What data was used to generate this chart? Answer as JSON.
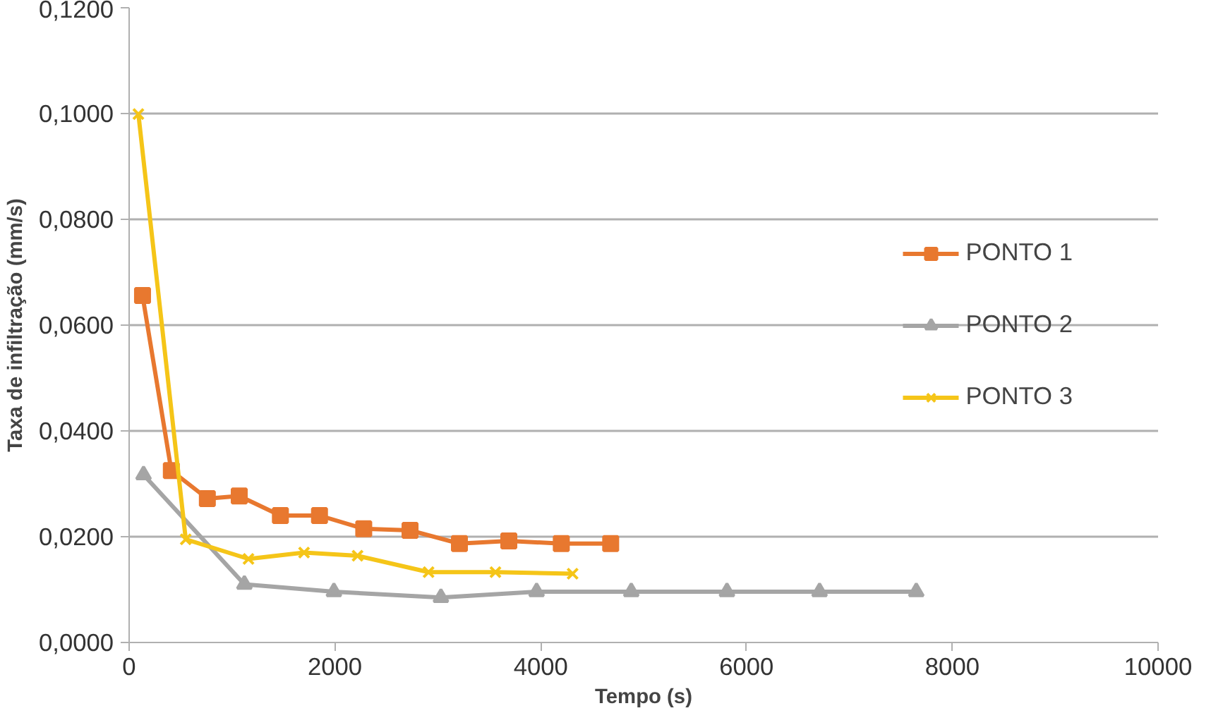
{
  "chart_data": {
    "type": "line",
    "xlabel": "Tempo (s)",
    "ylabel": "Taxa de infiltração (mm/s)",
    "xlim": [
      0,
      10000
    ],
    "xticks": [
      0,
      2000,
      4000,
      6000,
      8000,
      10000
    ],
    "ylim": [
      0,
      0.12
    ],
    "yticks": [
      {
        "value": 0,
        "label": "0,0000"
      },
      {
        "value": 0.02,
        "label": "0,0200"
      },
      {
        "value": 0.04,
        "label": "0,0400"
      },
      {
        "value": 0.06,
        "label": "0,0600"
      },
      {
        "value": 0.08,
        "label": "0,0800"
      },
      {
        "value": 0.1,
        "label": "0,1000"
      },
      {
        "value": 0.12,
        "label": "0,1200"
      }
    ],
    "grid": "y",
    "legend": "right",
    "series": [
      {
        "name": "PONTO 1",
        "color": "#e8782f",
        "marker": "square",
        "x": [
          130,
          410,
          760,
          1070,
          1470,
          1850,
          2280,
          2730,
          3210,
          3690,
          4200,
          4680
        ],
        "values": [
          0.0656,
          0.0325,
          0.0272,
          0.0277,
          0.024,
          0.024,
          0.0215,
          0.0212,
          0.0187,
          0.0192,
          0.0187,
          0.0187
        ]
      },
      {
        "name": "PONTO 2",
        "color": "#a5a5a5",
        "marker": "triangle",
        "x": [
          140,
          1120,
          1990,
          3030,
          3960,
          4880,
          5810,
          6710,
          7650
        ],
        "values": [
          0.0317,
          0.011,
          0.0096,
          0.0085,
          0.0096,
          0.0096,
          0.0096,
          0.0096,
          0.0096
        ]
      },
      {
        "name": "PONTO 3",
        "color": "#f5c518",
        "marker": "cross",
        "x": [
          90,
          550,
          1160,
          1700,
          2220,
          2910,
          3560,
          4310
        ],
        "values": [
          0.0999,
          0.0195,
          0.0158,
          0.017,
          0.0164,
          0.0133,
          0.0133,
          0.013
        ]
      }
    ]
  }
}
